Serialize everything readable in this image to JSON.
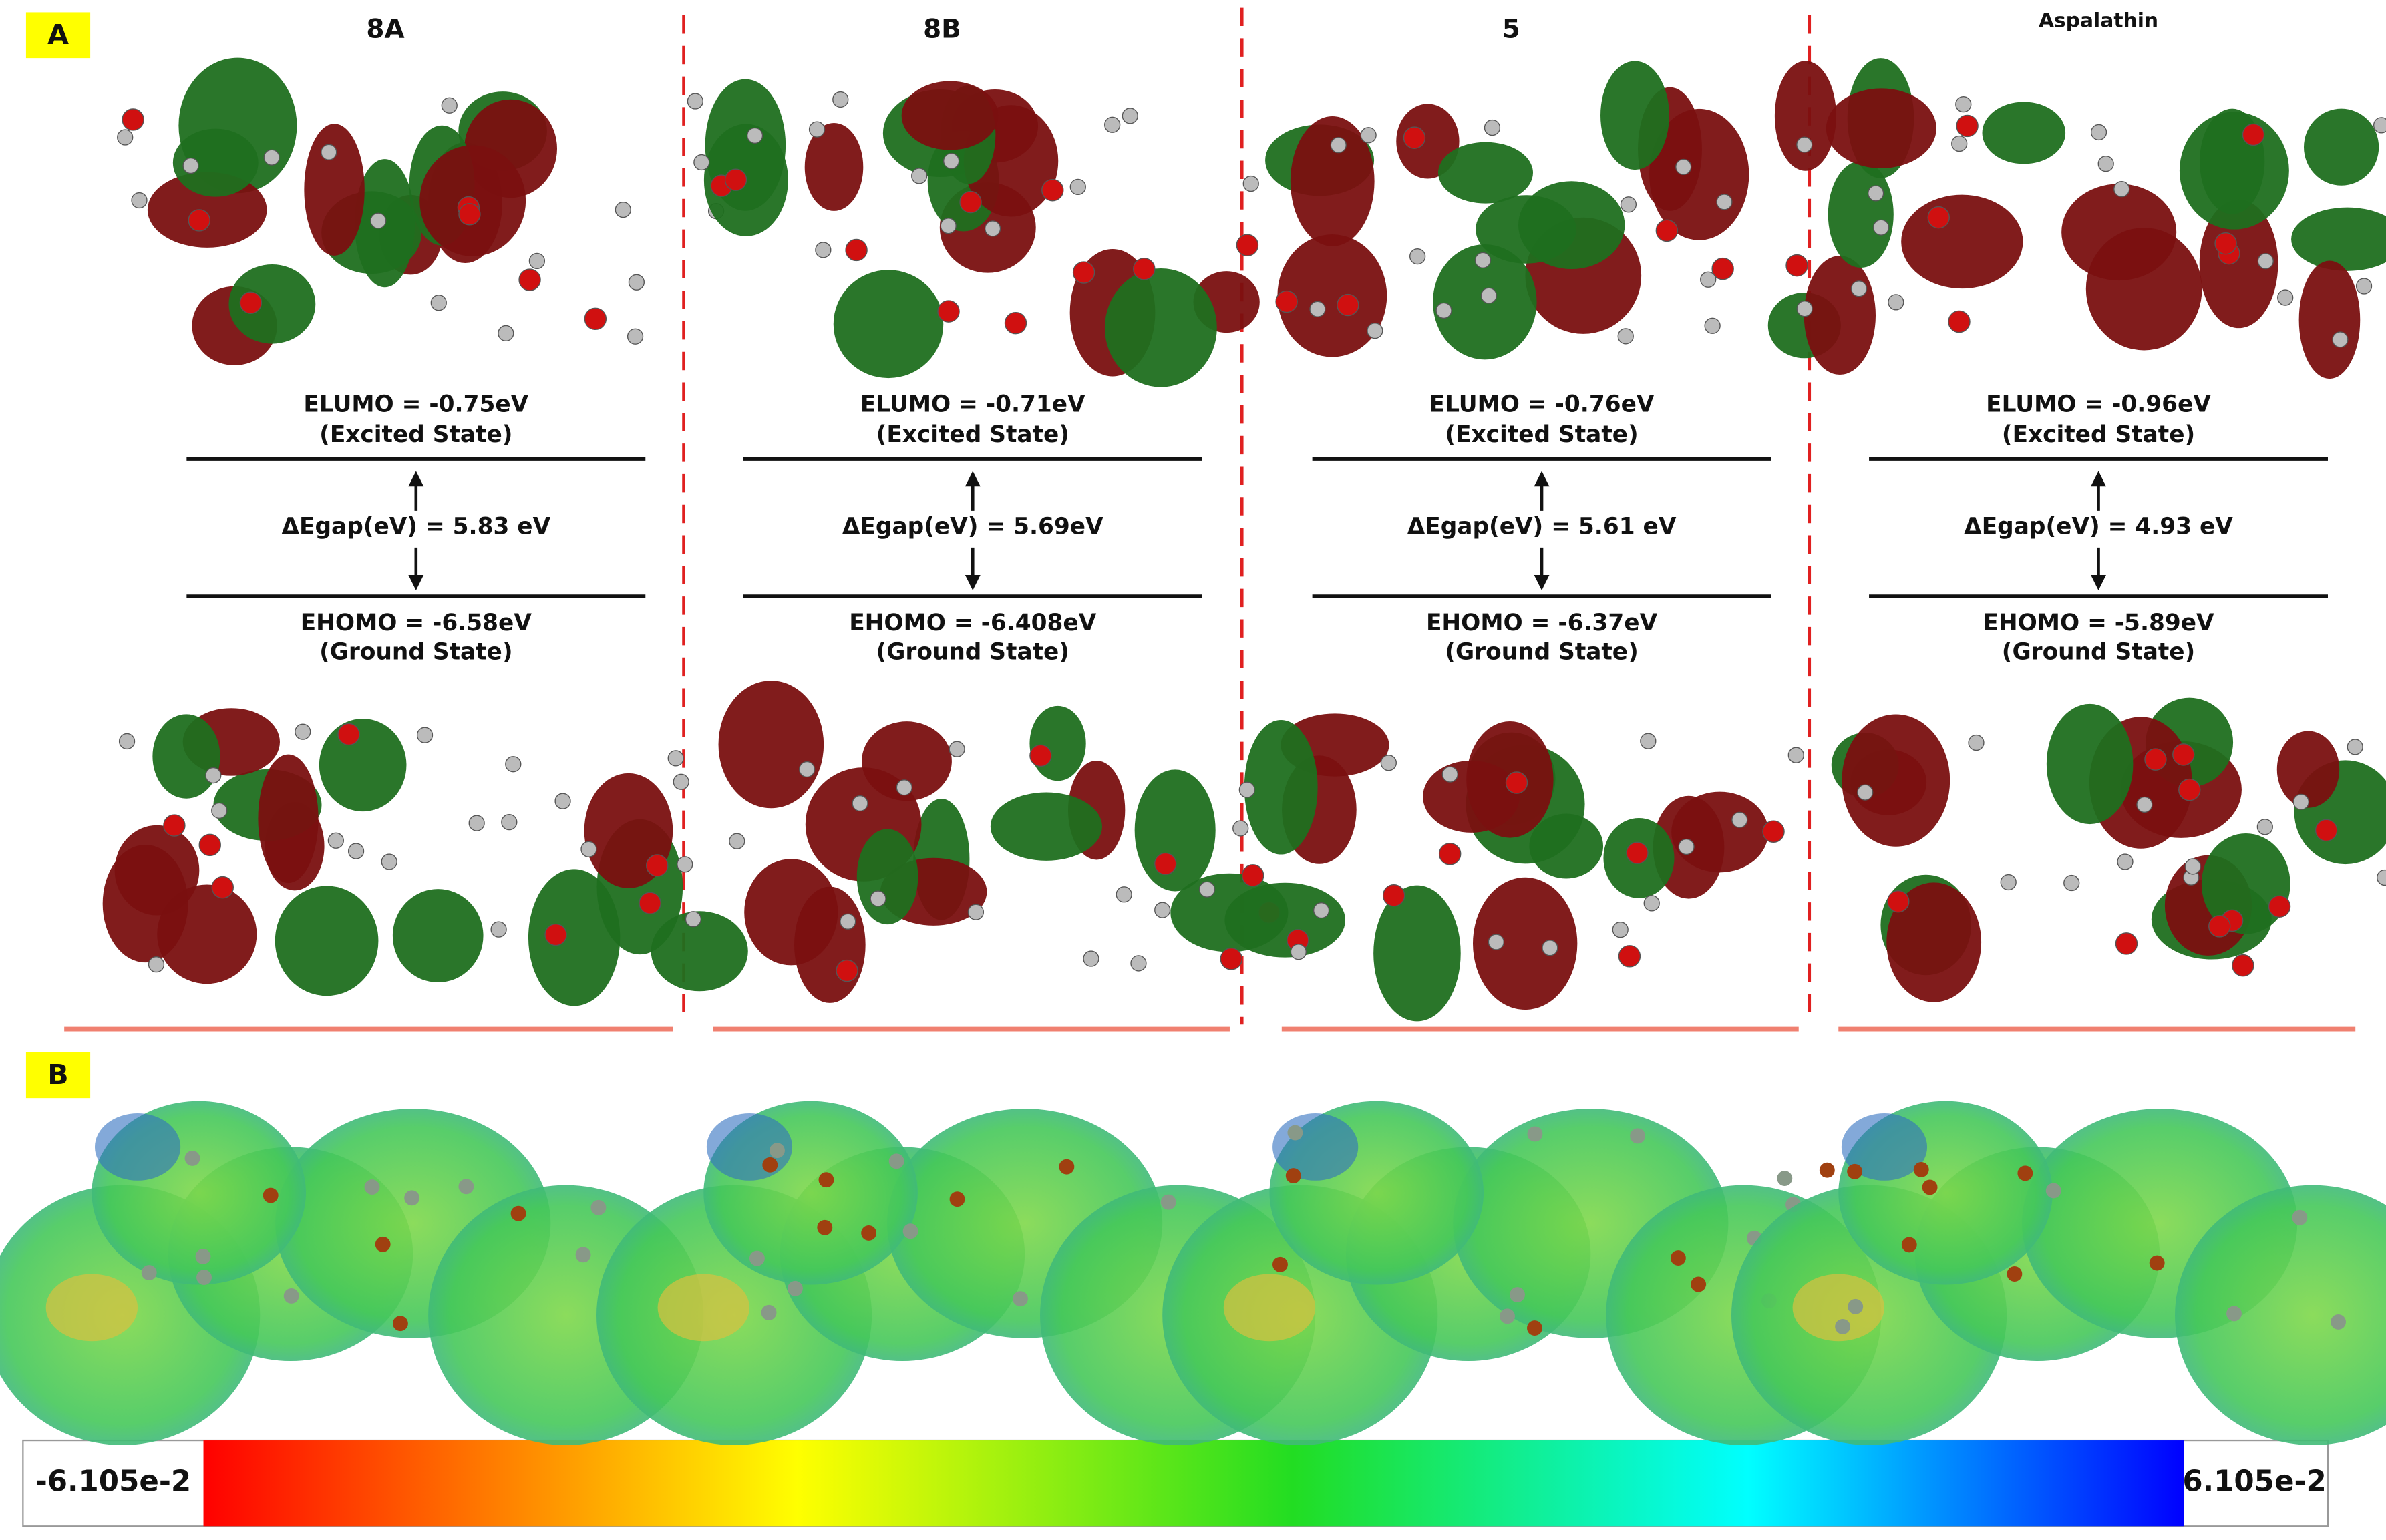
{
  "panels": [
    {
      "label": "A"
    },
    {
      "label": "B"
    }
  ],
  "columns": [
    {
      "title": "8A",
      "lumo": "ELUMO = -0.75eV",
      "lumo_state": "(Excited State)",
      "gap": "ΔEgap(eV) = 5.83 eV",
      "homo": "EHOMO = -6.58eV",
      "homo_state": "(Ground State)"
    },
    {
      "title": "8B",
      "lumo": "ELUMO = -0.71eV",
      "lumo_state": "(Excited State)",
      "gap": "ΔEgap(eV) = 5.69eV",
      "homo": "EHOMO = -6.408eV",
      "homo_state": "(Ground State)"
    },
    {
      "title": "5",
      "lumo": "ELUMO = -0.76eV",
      "lumo_state": "(Excited State)",
      "gap": "ΔEgap(eV) = 5.61 eV",
      "homo": "EHOMO = -6.37eV",
      "homo_state": "(Ground State)"
    },
    {
      "title": "Aspalathin",
      "lumo": "ELUMO = -0.96eV",
      "lumo_state": "(Excited State)",
      "gap": "ΔEgap(eV) = 4.93 eV",
      "homo": "EHOMO = -5.89eV",
      "homo_state": "(Ground State)"
    }
  ],
  "colorbar": {
    "min_label": "-6.105e-2",
    "max_label": "6.105e-2"
  }
}
